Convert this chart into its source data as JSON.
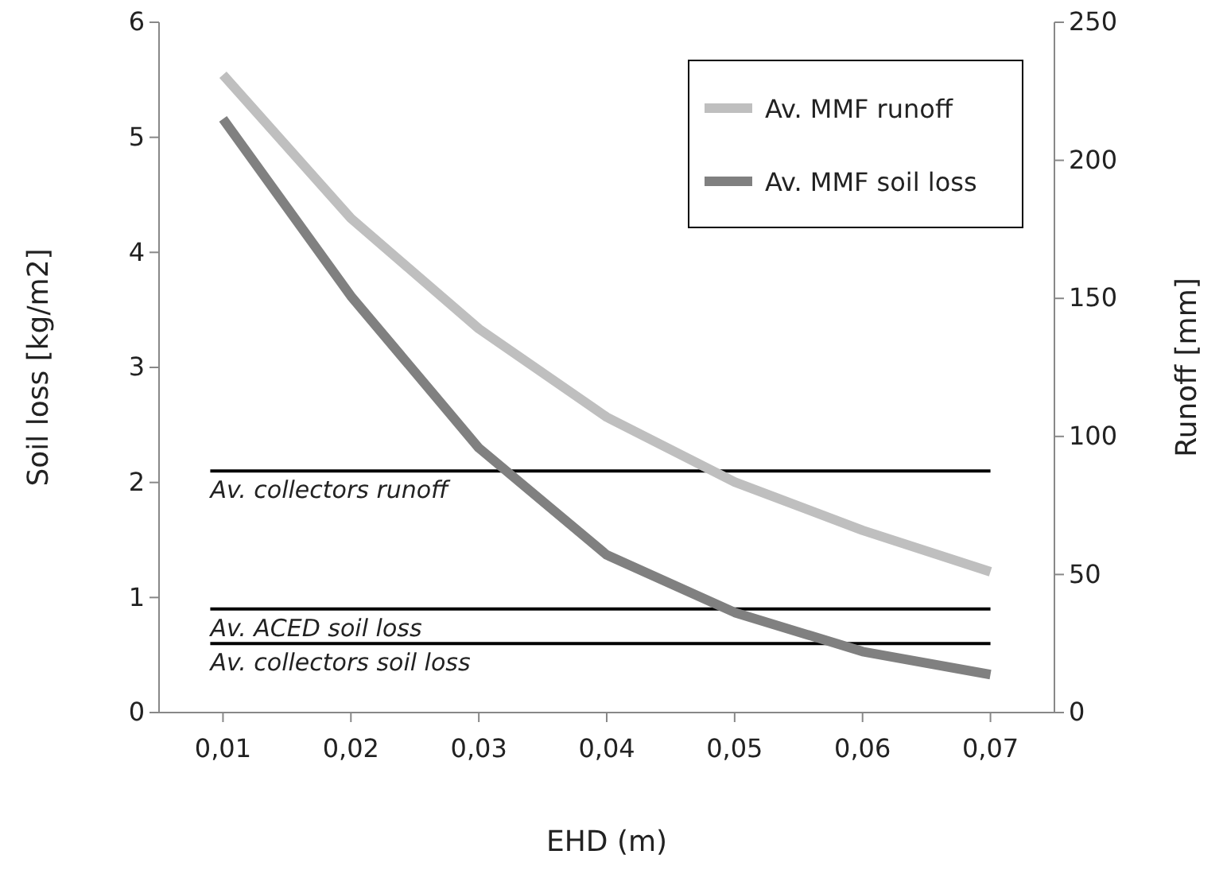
{
  "chart_data": {
    "type": "line",
    "xlabel": "EHD (m)",
    "ylabel": "Soil loss [kg/m2]",
    "y2label": "Runoff [mm]",
    "categories": [
      "0,01",
      "0,02",
      "0,03",
      "0,04",
      "0,05",
      "0,06",
      "0,07"
    ],
    "series": [
      {
        "name": "Av. MMF runoff",
        "color": "#bfbfbf",
        "axis": "y2",
        "values": [
          231,
          179,
          139,
          107,
          83.5,
          66,
          51
        ]
      },
      {
        "name": "Av. MMF soil loss",
        "color": "#808080",
        "values": [
          5.16,
          3.62,
          2.3,
          1.37,
          0.87,
          0.53,
          0.33
        ]
      }
    ],
    "ylim": [
      0,
      6
    ],
    "yticks": [
      0,
      1,
      2,
      3,
      4,
      5,
      6
    ],
    "y2lim": [
      0,
      250
    ],
    "y2ticks": [
      0,
      50,
      100,
      150,
      200,
      250
    ],
    "ref_lines": [
      {
        "axis": "y2",
        "value": 87.5,
        "label": "Av. collectors runoff",
        "color": "#000000"
      },
      {
        "axis": "y",
        "value": 0.9,
        "label": "Av. ACED soil loss",
        "color": "#000000"
      },
      {
        "axis": "y",
        "value": 0.6,
        "label": "Av. collectors soil loss",
        "color": "#000000"
      }
    ],
    "legend": "top right",
    "grid": false,
    "marker": "none",
    "line_style": "solid"
  }
}
